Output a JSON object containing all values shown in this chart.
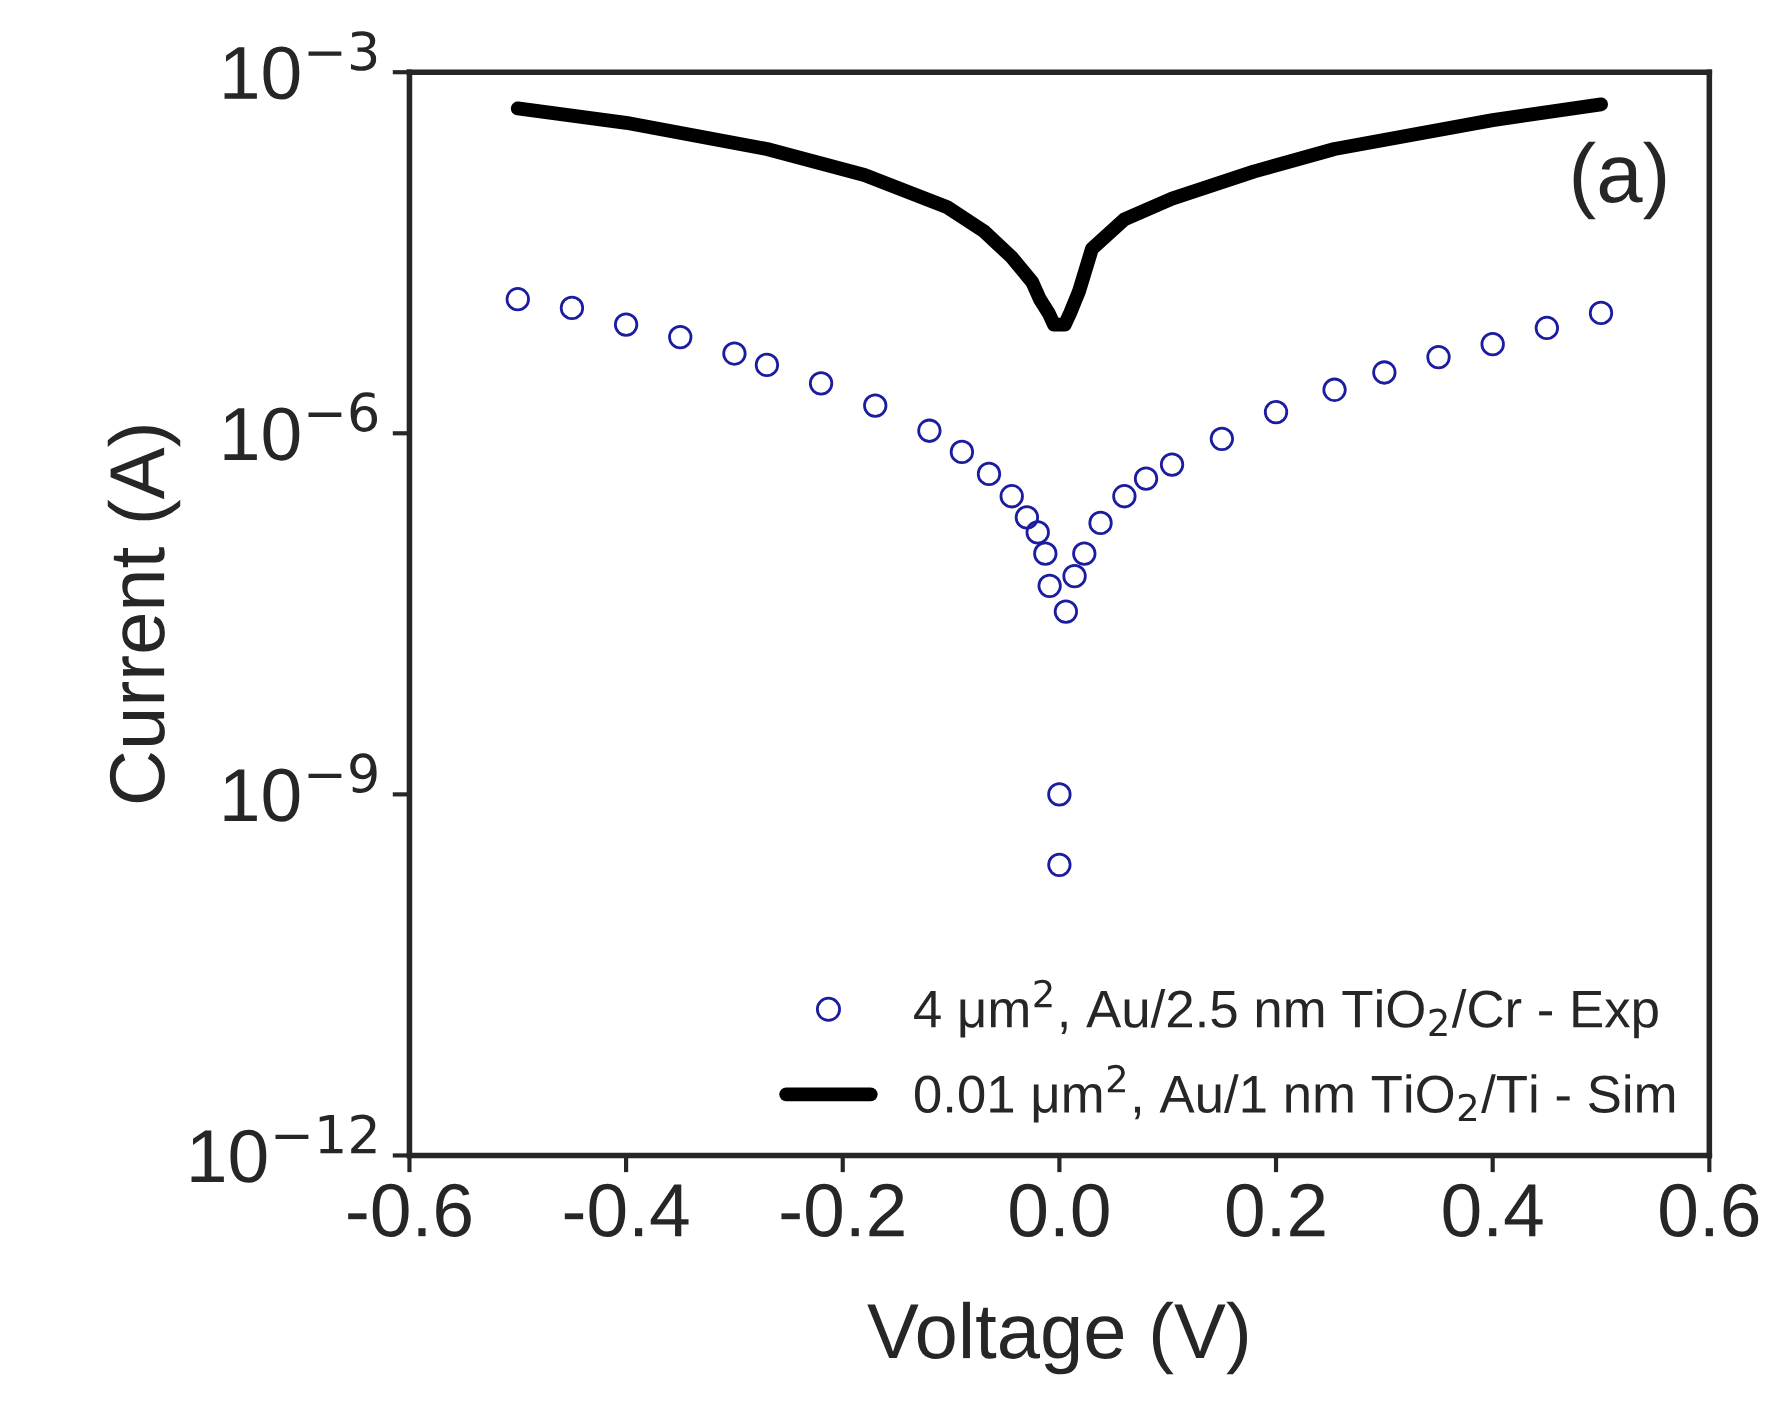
{
  "chart_data": {
    "type": "scatter",
    "xlabel": "Voltage (V)",
    "ylabel": "Current (A)",
    "annotations": [
      "(a)"
    ],
    "series": [
      {
        "name": "4 μm$^{2}$, Au/2.5 nm TiO$_{2}$/Cr - Exp",
        "marker": "circle",
        "color": "#1c1ca0",
        "x": [
          -0.5,
          -0.45,
          -0.4,
          -0.35,
          -0.3,
          -0.27,
          -0.22,
          -0.17,
          -0.12,
          -0.09,
          -0.065,
          -0.044,
          -0.03,
          -0.02,
          -0.013,
          -0.009,
          0.0,
          0.0,
          0.006,
          0.014,
          0.023,
          0.038,
          0.06,
          0.08,
          0.104,
          0.15,
          0.2,
          0.254,
          0.3,
          0.35,
          0.4,
          0.45,
          0.5
        ],
        "values": [
          1.3e-05,
          1.1e-05,
          8e-06,
          6.3e-06,
          4.6e-06,
          3.7e-06,
          2.6e-06,
          1.7e-06,
          1.05e-06,
          7e-07,
          4.6e-07,
          3e-07,
          2e-07,
          1.5e-07,
          1e-07,
          5.4e-08,
          1e-09,
          2.6e-10,
          3.3e-08,
          6.5e-08,
          1e-07,
          1.8e-07,
          3e-07,
          4.2e-07,
          5.5e-07,
          9e-07,
          1.5e-06,
          2.3e-06,
          3.2e-06,
          4.3e-06,
          5.5e-06,
          7.5e-06,
          1e-05
        ]
      },
      {
        "name": "0.01 μm$^{2}$, Au/1 nm TiO$_{2}$/Ti - Sim",
        "type": "line",
        "marker": "none",
        "color": "#000000",
        "x": [
          -0.5,
          -0.4,
          -0.27,
          -0.18,
          -0.104,
          -0.07,
          -0.044,
          -0.025,
          -0.018,
          -0.01,
          -0.005,
          0.005,
          0.01,
          0.018,
          0.03,
          0.06,
          0.104,
          0.18,
          0.254,
          0.4,
          0.5
        ],
        "values": [
          0.0005,
          0.00038,
          0.00023,
          0.00014,
          7.6e-05,
          4.8e-05,
          2.9e-05,
          1.8e-05,
          1.3e-05,
          1e-05,
          8e-06,
          8e-06,
          1e-05,
          1.5e-05,
          3.4e-05,
          6e-05,
          8.9e-05,
          0.00015,
          0.00023,
          0.0004,
          0.00054
        ]
      }
    ],
    "log": "y",
    "xlim": [
      -0.6,
      0.6
    ],
    "xticks": [
      {
        "value": -0.6,
        "label": "-0.6"
      },
      {
        "value": -0.4,
        "label": "-0.4"
      },
      {
        "value": -0.2,
        "label": "-0.2"
      },
      {
        "value": 0.0,
        "label": "0.0"
      },
      {
        "value": 0.2,
        "label": "0.2"
      },
      {
        "value": 0.4,
        "label": "0.4"
      },
      {
        "value": 0.6,
        "label": "0.6"
      }
    ],
    "ylim": [
      1e-12,
      0.001
    ],
    "yticks": [
      {
        "value": 1e-12,
        "label": "10$^{−12}$"
      },
      {
        "value": 1e-09,
        "label": "10$^{−9}$"
      },
      {
        "value": 1e-06,
        "label": "10$^{−6}$"
      },
      {
        "value": 0.001,
        "label": "10$^{−3}$"
      }
    ],
    "legend": "bottom right",
    "grid": false
  }
}
